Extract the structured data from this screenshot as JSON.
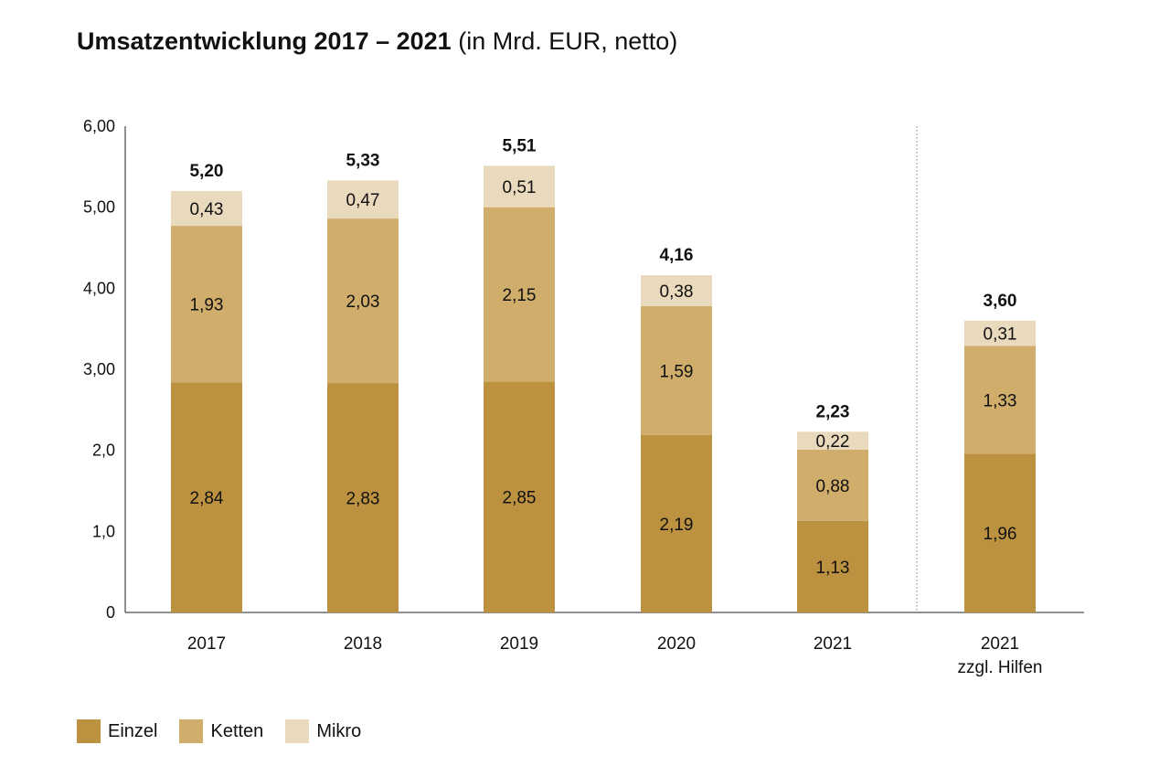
{
  "chart_data": {
    "type": "bar",
    "stacked": true,
    "title": "Umsatzentwicklung 2017 – 2021",
    "subtitle": "(in Mrd. EUR, netto)",
    "xlabel": "",
    "ylabel": "",
    "ylim": [
      0,
      6
    ],
    "yticks": [
      {
        "value": 0,
        "label": "0"
      },
      {
        "value": 1,
        "label": "1,0"
      },
      {
        "value": 2,
        "label": "2,0"
      },
      {
        "value": 3,
        "label": "3,00"
      },
      {
        "value": 4,
        "label": "4,00"
      },
      {
        "value": 5,
        "label": "5,00"
      },
      {
        "value": 6,
        "label": "6,00"
      }
    ],
    "categories": [
      {
        "line1": "2017",
        "line2": ""
      },
      {
        "line1": "2018",
        "line2": ""
      },
      {
        "line1": "2019",
        "line2": ""
      },
      {
        "line1": "2020",
        "line2": ""
      },
      {
        "line1": "2021",
        "line2": ""
      },
      {
        "line1": "2021",
        "line2": "zzgl. Hilfen"
      }
    ],
    "series": [
      {
        "name": "Einzel",
        "color": "#bc9240",
        "values": [
          2.84,
          2.83,
          2.85,
          2.19,
          1.13,
          1.96
        ],
        "labels": [
          "2,84",
          "2,83",
          "2,85",
          "2,19",
          "1,13",
          "1,96"
        ]
      },
      {
        "name": "Ketten",
        "color": "#d0ad6b",
        "values": [
          1.93,
          2.03,
          2.15,
          1.59,
          0.88,
          1.33
        ],
        "labels": [
          "1,93",
          "2,03",
          "2,15",
          "1,59",
          "0,88",
          "1,33"
        ]
      },
      {
        "name": "Mikro",
        "color": "#e9d9bd",
        "values": [
          0.43,
          0.47,
          0.51,
          0.38,
          0.22,
          0.31
        ],
        "labels": [
          "0,43",
          "0,47",
          "0,51",
          "0,38",
          "0,22",
          "0,31"
        ]
      }
    ],
    "totals": [
      5.2,
      5.33,
      5.51,
      4.16,
      2.23,
      3.6
    ],
    "total_labels": [
      "5,20",
      "5,33",
      "5,51",
      "4,16",
      "2,23",
      "3,60"
    ],
    "separator_before_category": 5,
    "legend_position": "bottom-left"
  }
}
